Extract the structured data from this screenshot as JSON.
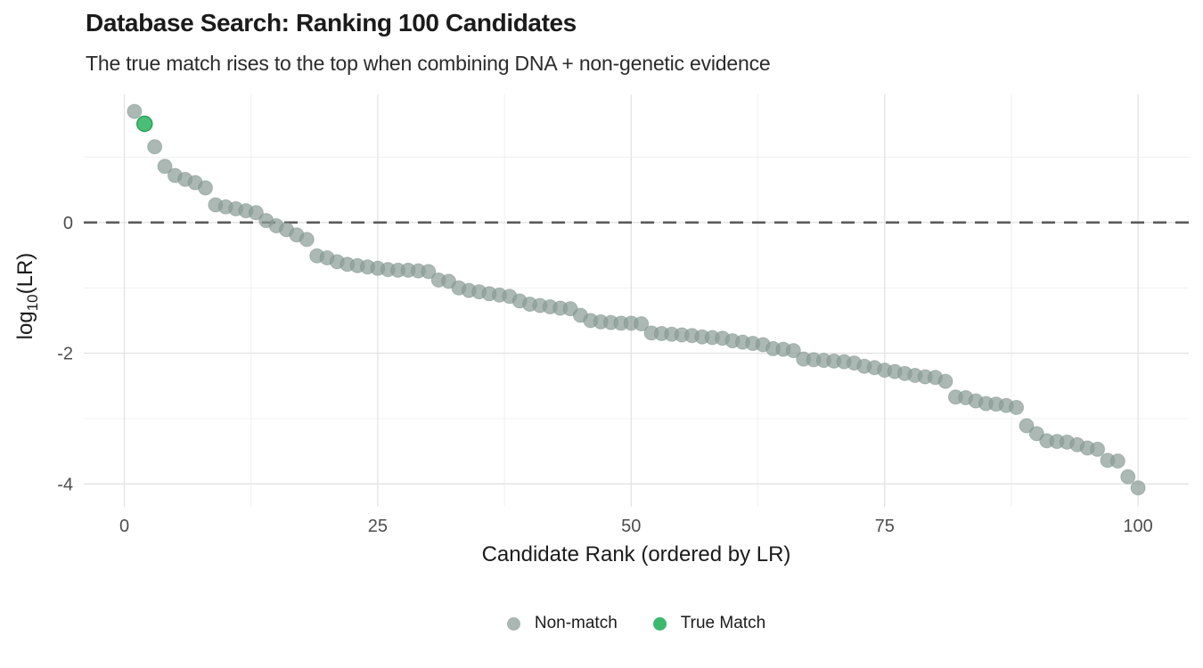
{
  "header": {
    "title": "Database Search: Ranking 100 Candidates",
    "subtitle": "The true match rises to the top when combining DNA + non-genetic evidence"
  },
  "legend": {
    "items": [
      {
        "label": "Non-match",
        "color": "#a9b6b2"
      },
      {
        "label": "True Match",
        "color": "#3cb96d"
      }
    ]
  },
  "chart_data": {
    "type": "scatter",
    "title": "Database Search: Ranking 100 Candidates",
    "subtitle": "The true match rises to the top when combining DNA + non-genetic evidence",
    "xlabel": "Candidate Rank (ordered by LR)",
    "ylabel": "log10(LR)",
    "ylabel_parts": {
      "prefix": "log",
      "sub": "10",
      "suffix": "(LR)"
    },
    "xlim": [
      -4,
      105
    ],
    "ylim": [
      -4.35,
      1.96
    ],
    "x_major_ticks": [
      0,
      25,
      50,
      75,
      100
    ],
    "x_minor_ticks": [
      12.5,
      37.5,
      62.5,
      87.5
    ],
    "y_major_ticks": [
      0,
      -2,
      -4
    ],
    "y_minor_ticks": [
      1,
      -1,
      -3
    ],
    "grid": true,
    "legend_position": "bottom",
    "reference_line": {
      "y": 0,
      "style": "dashed",
      "color": "#5a5a5a"
    },
    "series": [
      {
        "name": "Non-match",
        "color": "#8b9c97",
        "stroke": "#7a8e89",
        "opacity": 0.72
      },
      {
        "name": "True Match",
        "color": "#3fba70",
        "stroke": "#2aa156",
        "opacity": 0.95
      }
    ],
    "true_match_rank": 2,
    "ranks": "1 to 100 in order",
    "log10_lr_by_rank": [
      1.7,
      1.51,
      1.16,
      0.86,
      0.72,
      0.66,
      0.61,
      0.53,
      0.27,
      0.24,
      0.21,
      0.18,
      0.15,
      0.03,
      -0.05,
      -0.11,
      -0.19,
      -0.26,
      -0.51,
      -0.54,
      -0.6,
      -0.64,
      -0.66,
      -0.68,
      -0.7,
      -0.72,
      -0.73,
      -0.73,
      -0.74,
      -0.75,
      -0.88,
      -0.9,
      -1.0,
      -1.04,
      -1.06,
      -1.09,
      -1.11,
      -1.13,
      -1.2,
      -1.25,
      -1.27,
      -1.29,
      -1.31,
      -1.32,
      -1.42,
      -1.5,
      -1.52,
      -1.53,
      -1.54,
      -1.54,
      -1.55,
      -1.69,
      -1.7,
      -1.71,
      -1.72,
      -1.73,
      -1.75,
      -1.76,
      -1.77,
      -1.81,
      -1.83,
      -1.85,
      -1.87,
      -1.93,
      -1.94,
      -1.96,
      -2.09,
      -2.1,
      -2.11,
      -2.12,
      -2.13,
      -2.15,
      -2.2,
      -2.22,
      -2.26,
      -2.28,
      -2.31,
      -2.34,
      -2.36,
      -2.37,
      -2.43,
      -2.67,
      -2.68,
      -2.73,
      -2.77,
      -2.78,
      -2.8,
      -2.83,
      -3.11,
      -3.23,
      -3.34,
      -3.35,
      -3.36,
      -3.4,
      -3.45,
      -3.47,
      -3.64,
      -3.65,
      -3.89,
      -4.06
    ]
  }
}
